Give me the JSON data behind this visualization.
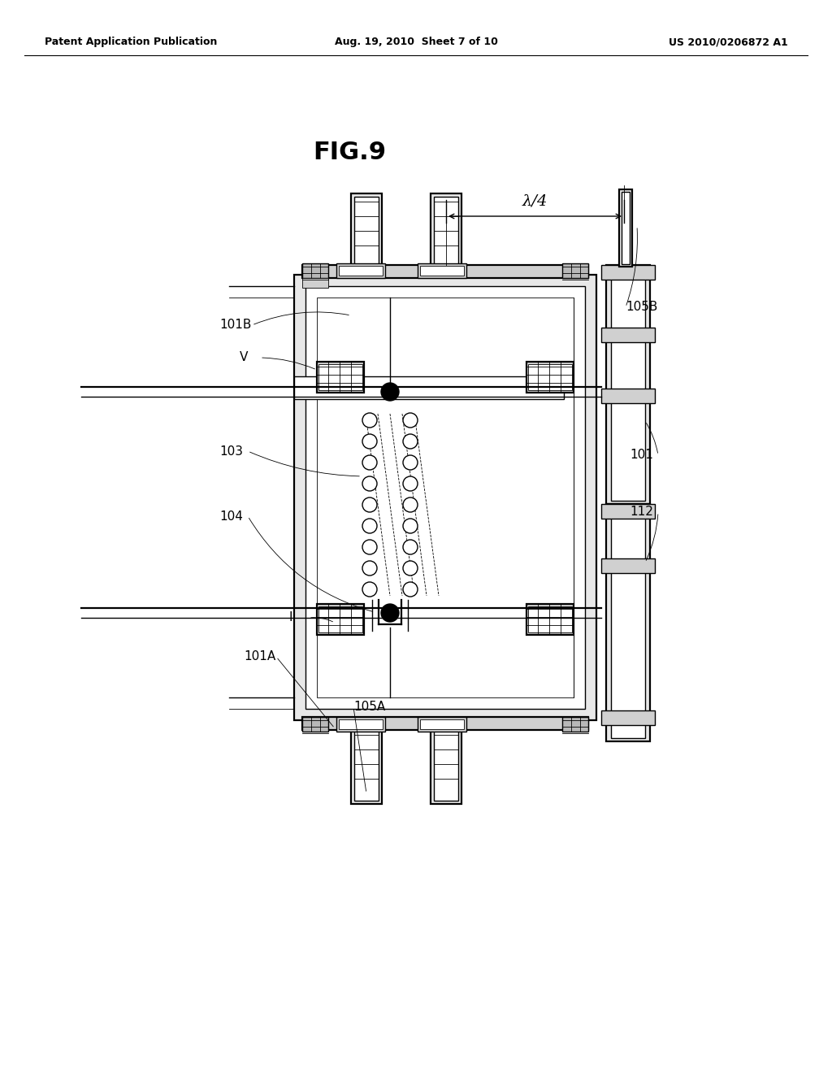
{
  "title": "FIG.9",
  "header_left": "Patent Application Publication",
  "header_center": "Aug. 19, 2010  Sheet 7 of 10",
  "header_right": "US 2010/0206872 A1",
  "bg_color": "#ffffff",
  "fg_color": "#000000",
  "lambda_label": "λ/4"
}
